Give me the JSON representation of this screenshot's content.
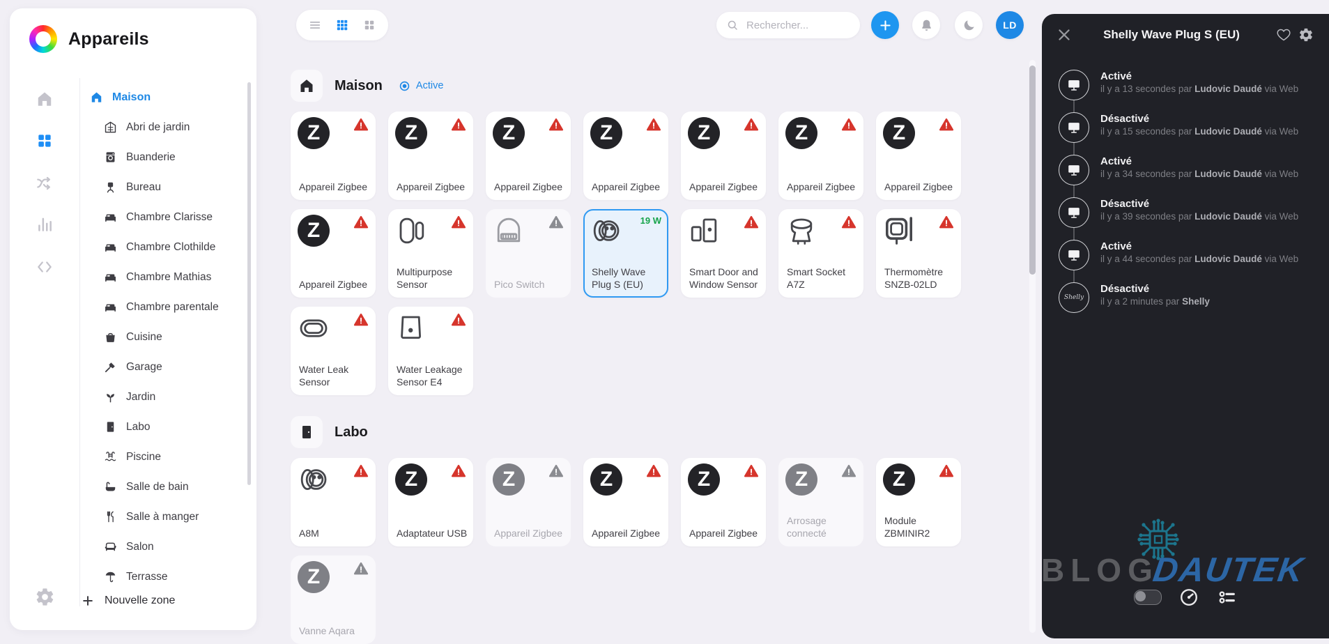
{
  "app": {
    "title": "Appareils"
  },
  "rail": {
    "items": [
      {
        "name": "home",
        "icon": "home",
        "active": false
      },
      {
        "name": "devices",
        "icon": "apps",
        "active": true
      },
      {
        "name": "flows",
        "icon": "flow",
        "active": false
      },
      {
        "name": "insights",
        "icon": "chart",
        "active": false
      },
      {
        "name": "scripts",
        "icon": "code",
        "active": false
      }
    ]
  },
  "sidebar": {
    "active_zone": {
      "label": "Maison",
      "icon": "home"
    },
    "zones": [
      {
        "label": "Abri de jardin",
        "icon": "shed"
      },
      {
        "label": "Buanderie",
        "icon": "washer"
      },
      {
        "label": "Bureau",
        "icon": "chair"
      },
      {
        "label": "Chambre Clarisse",
        "icon": "bed"
      },
      {
        "label": "Chambre Clothilde",
        "icon": "bed"
      },
      {
        "label": "Chambre Mathias",
        "icon": "bed"
      },
      {
        "label": "Chambre parentale",
        "icon": "bed"
      },
      {
        "label": "Cuisine",
        "icon": "pot"
      },
      {
        "label": "Garage",
        "icon": "hammer"
      },
      {
        "label": "Jardin",
        "icon": "plant"
      },
      {
        "label": "Labo",
        "icon": "door"
      },
      {
        "label": "Piscine",
        "icon": "pool"
      },
      {
        "label": "Salle de bain",
        "icon": "bath"
      },
      {
        "label": "Salle à manger",
        "icon": "cutlery"
      },
      {
        "label": "Salon",
        "icon": "sofa"
      },
      {
        "label": "Terrasse",
        "icon": "umbrella"
      }
    ],
    "new_zone_label": "Nouvelle zone"
  },
  "topbar": {
    "search_placeholder": "Rechercher...",
    "avatar_initials": "LD"
  },
  "sections": [
    {
      "title": "Maison",
      "icon": "home",
      "status_label": "Active",
      "devices": [
        {
          "label": "Appareil Zigbee",
          "icon": "zigbee",
          "state": "alert"
        },
        {
          "label": "Appareil Zigbee",
          "icon": "zigbee",
          "state": "alert"
        },
        {
          "label": "Appareil Zigbee",
          "icon": "zigbee",
          "state": "alert"
        },
        {
          "label": "Appareil Zigbee",
          "icon": "zigbee",
          "state": "alert"
        },
        {
          "label": "Appareil Zigbee",
          "icon": "zigbee",
          "state": "alert"
        },
        {
          "label": "Appareil Zigbee",
          "icon": "zigbee",
          "state": "alert"
        },
        {
          "label": "Appareil Zigbee",
          "icon": "zigbee",
          "state": "alert"
        },
        {
          "label": "Appareil Zigbee",
          "icon": "zigbee",
          "state": "alert"
        },
        {
          "label": "Multipurpose Sensor",
          "icon": "contact",
          "state": "alert"
        },
        {
          "label": "Pico Switch",
          "icon": "relay",
          "state": "disabled"
        },
        {
          "label": "Shelly Wave Plug S (EU)",
          "icon": "plug",
          "state": "selected",
          "power": "19 W"
        },
        {
          "label": "Smart Door and Window Sensor",
          "icon": "doorwindow",
          "state": "alert"
        },
        {
          "label": "Smart Socket A7Z",
          "icon": "socket",
          "state": "alert"
        },
        {
          "label": "Thermomètre SNZB-02LD",
          "icon": "thermo",
          "state": "alert"
        },
        {
          "label": "Water Leak Sensor",
          "icon": "wateroval",
          "state": "alert"
        },
        {
          "label": "Water Leakage Sensor E4",
          "icon": "watersquare",
          "state": "alert"
        }
      ]
    },
    {
      "title": "Labo",
      "icon": "door",
      "status_label": "",
      "devices": [
        {
          "label": "A8M",
          "icon": "plug",
          "state": "alert"
        },
        {
          "label": "Adaptateur USB",
          "icon": "zigbee",
          "state": "alert"
        },
        {
          "label": "Appareil Zigbee",
          "icon": "zigbee",
          "state": "disabled"
        },
        {
          "label": "Appareil Zigbee",
          "icon": "zigbee",
          "state": "alert"
        },
        {
          "label": "Appareil Zigbee",
          "icon": "zigbee",
          "state": "alert"
        },
        {
          "label": "Arrosage connecté",
          "icon": "zigbee",
          "state": "disabled"
        },
        {
          "label": "Module ZBMINIR2",
          "icon": "zigbee",
          "state": "alert"
        },
        {
          "label": "Vanne Aqara",
          "icon": "zigbee",
          "state": "disabled"
        }
      ]
    }
  ],
  "panel": {
    "title": "Shelly Wave Plug S (EU)",
    "connector_word": "par",
    "events": [
      {
        "title": "Activé",
        "time": "il y a 13 secondes",
        "actor": "Ludovic Daudé",
        "via": "via Web",
        "icon": "monitor"
      },
      {
        "title": "Désactivé",
        "time": "il y a 15 secondes",
        "actor": "Ludovic Daudé",
        "via": "via Web",
        "icon": "monitor"
      },
      {
        "title": "Activé",
        "time": "il y a 34 secondes",
        "actor": "Ludovic Daudé",
        "via": "via Web",
        "icon": "monitor"
      },
      {
        "title": "Désactivé",
        "time": "il y a 39 secondes",
        "actor": "Ludovic Daudé",
        "via": "via Web",
        "icon": "monitor"
      },
      {
        "title": "Activé",
        "time": "il y a 44 secondes",
        "actor": "Ludovic Daudé",
        "via": "via Web",
        "icon": "monitor"
      },
      {
        "title": "Désactivé",
        "time": "il y a 2 minutes",
        "actor": "Shelly",
        "via": "",
        "icon": "shelly"
      }
    ]
  },
  "watermark": {
    "word1": "BLOG",
    "word2": "DAUTEK"
  },
  "colors": {
    "accent": "#1e88e5",
    "alert": "#d6352c",
    "disabled": "#8b8c91",
    "power_green": "#16a34a",
    "panel_bg": "#202127"
  }
}
